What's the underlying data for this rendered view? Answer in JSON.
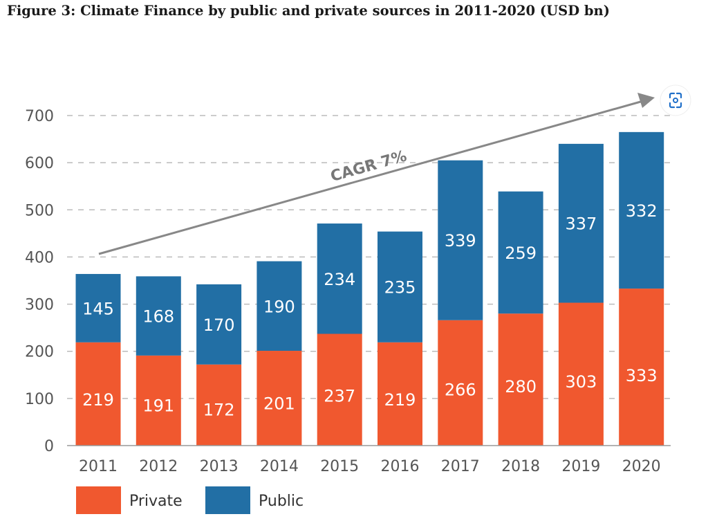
{
  "chart_data": {
    "type": "bar",
    "stacked": true,
    "title": "Figure 3: Climate Finance by public and private sources in 2011-2020 (USD bn)",
    "categories": [
      "2011",
      "2012",
      "2013",
      "2014",
      "2015",
      "2016",
      "2017",
      "2018",
      "2019",
      "2020"
    ],
    "series": [
      {
        "name": "Private",
        "color": "#F0582F",
        "values": [
          219,
          191,
          172,
          201,
          237,
          219,
          266,
          280,
          303,
          333
        ]
      },
      {
        "name": "Public",
        "color": "#226FA5",
        "values": [
          145,
          168,
          170,
          190,
          234,
          235,
          339,
          259,
          337,
          332
        ]
      }
    ],
    "ylim": [
      0,
      700
    ],
    "yticks": [
      0,
      100,
      200,
      300,
      400,
      500,
      600,
      700
    ],
    "grid": true,
    "legend": "bottom-left",
    "annotation": "CAGR 7%",
    "icon": "scan-focus-icon"
  }
}
